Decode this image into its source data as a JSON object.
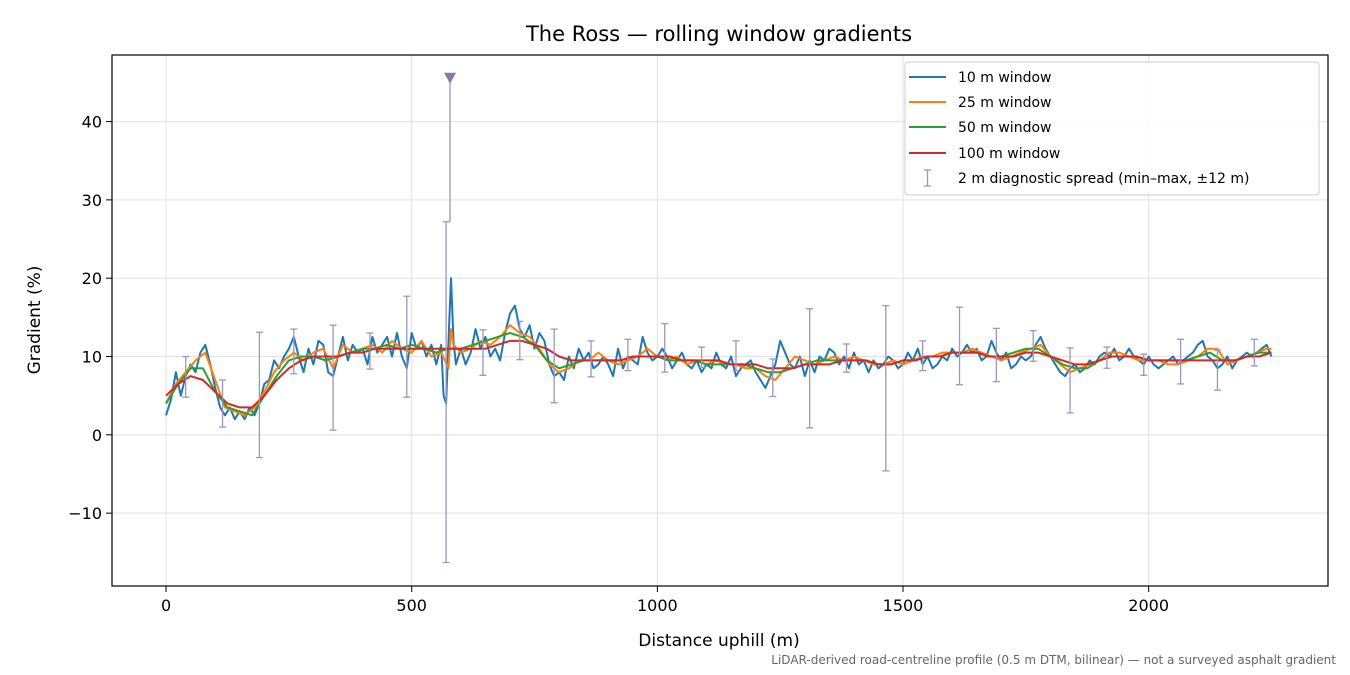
{
  "chart_data": {
    "type": "line",
    "title": "The Ross — rolling window gradients",
    "xlabel": "Distance uphill (m)",
    "ylabel": "Gradient (%)",
    "footnote": "LiDAR-derived road-centreline profile (0.5 m DTM, bilinear) — not a surveyed asphalt gradient",
    "xlim": [
      -110,
      2365
    ],
    "ylim": [
      -19.3,
      48.5
    ],
    "xticks": [
      0,
      500,
      1000,
      1500,
      2000
    ],
    "xtick_labels": [
      "0",
      "500",
      "1000",
      "1500",
      "2000"
    ],
    "yticks": [
      -10,
      0,
      10,
      20,
      30,
      40
    ],
    "ytick_labels": [
      "−10",
      "0",
      "10",
      "20",
      "30",
      "40"
    ],
    "grid": true,
    "legend_position": "top-right",
    "colors": {
      "w10": "#1f77b4",
      "w25": "#ff7f0e",
      "w50": "#2ca02c",
      "w100": "#d62728",
      "diag": "#9e95c0",
      "marker": "#8a78ad"
    },
    "series": [
      {
        "name": "10 m window",
        "color": "#1f77b4",
        "x": [
          0,
          10,
          20,
          30,
          40,
          50,
          60,
          70,
          80,
          90,
          100,
          110,
          120,
          130,
          140,
          150,
          160,
          170,
          180,
          190,
          200,
          210,
          220,
          230,
          240,
          250,
          260,
          270,
          280,
          290,
          300,
          310,
          320,
          330,
          340,
          350,
          360,
          370,
          380,
          390,
          400,
          410,
          420,
          430,
          440,
          450,
          460,
          470,
          480,
          490,
          500,
          510,
          520,
          530,
          540,
          550,
          560,
          565,
          570,
          575,
          580,
          585,
          590,
          600,
          610,
          620,
          630,
          640,
          650,
          660,
          670,
          680,
          690,
          700,
          710,
          720,
          730,
          740,
          750,
          760,
          770,
          780,
          790,
          800,
          810,
          820,
          830,
          840,
          850,
          860,
          870,
          880,
          890,
          900,
          910,
          920,
          930,
          940,
          950,
          960,
          970,
          980,
          990,
          1000,
          1010,
          1020,
          1030,
          1040,
          1050,
          1060,
          1070,
          1080,
          1090,
          1100,
          1110,
          1120,
          1130,
          1140,
          1150,
          1160,
          1170,
          1180,
          1190,
          1200,
          1210,
          1220,
          1230,
          1240,
          1250,
          1260,
          1270,
          1280,
          1290,
          1300,
          1310,
          1320,
          1330,
          1340,
          1350,
          1360,
          1370,
          1380,
          1390,
          1400,
          1410,
          1420,
          1430,
          1440,
          1450,
          1460,
          1470,
          1480,
          1490,
          1500,
          1510,
          1520,
          1530,
          1540,
          1550,
          1560,
          1570,
          1580,
          1590,
          1600,
          1610,
          1620,
          1630,
          1640,
          1650,
          1660,
          1670,
          1680,
          1690,
          1700,
          1710,
          1720,
          1730,
          1740,
          1750,
          1760,
          1770,
          1780,
          1790,
          1800,
          1810,
          1820,
          1830,
          1840,
          1850,
          1860,
          1870,
          1880,
          1890,
          1900,
          1910,
          1920,
          1930,
          1940,
          1950,
          1960,
          1970,
          1980,
          1990,
          2000,
          2010,
          2020,
          2030,
          2040,
          2050,
          2060,
          2070,
          2080,
          2090,
          2100,
          2110,
          2120,
          2130,
          2140,
          2150,
          2160,
          2170,
          2180,
          2190,
          2200,
          2210,
          2220,
          2230,
          2240,
          2250
        ],
        "y": [
          2.5,
          4.5,
          8.0,
          5.0,
          7.5,
          9.0,
          8.0,
          10.5,
          11.5,
          9.0,
          6.0,
          3.5,
          2.5,
          3.5,
          2.0,
          3.0,
          2.0,
          3.5,
          2.5,
          4.0,
          6.5,
          7.0,
          9.5,
          8.5,
          10.0,
          11.0,
          12.5,
          10.0,
          8.0,
          11.0,
          9.0,
          12.0,
          11.5,
          8.0,
          7.5,
          10.0,
          12.5,
          9.5,
          11.5,
          10.5,
          11.0,
          9.0,
          12.5,
          10.5,
          11.5,
          12.5,
          10.0,
          13.0,
          10.0,
          8.5,
          13.0,
          11.0,
          12.0,
          10.0,
          11.5,
          9.0,
          11.5,
          5.0,
          4.0,
          12.0,
          20.0,
          12.0,
          9.0,
          11.0,
          9.0,
          10.5,
          13.5,
          11.0,
          12.5,
          10.0,
          11.0,
          9.5,
          13.0,
          15.5,
          16.5,
          13.5,
          12.5,
          14.0,
          11.0,
          13.0,
          12.0,
          9.0,
          7.5,
          8.0,
          7.0,
          10.0,
          8.5,
          11.0,
          9.5,
          10.5,
          8.5,
          9.0,
          10.0,
          9.0,
          7.5,
          11.0,
          8.5,
          10.0,
          9.5,
          9.0,
          12.5,
          10.5,
          9.5,
          10.0,
          11.0,
          10.0,
          8.5,
          9.5,
          10.5,
          9.0,
          8.5,
          9.5,
          8.0,
          9.0,
          8.5,
          10.5,
          9.0,
          8.5,
          10.0,
          7.5,
          8.5,
          9.0,
          9.5,
          8.0,
          7.0,
          6.0,
          7.5,
          9.0,
          12.0,
          10.5,
          9.0,
          8.5,
          10.0,
          7.5,
          9.5,
          8.0,
          10.0,
          9.5,
          11.0,
          10.5,
          9.0,
          10.0,
          8.5,
          10.5,
          9.0,
          9.5,
          8.0,
          9.5,
          8.5,
          9.0,
          10.0,
          9.5,
          8.5,
          9.0,
          10.5,
          9.5,
          11.0,
          9.0,
          10.0,
          8.5,
          9.0,
          10.0,
          9.5,
          11.0,
          10.0,
          10.5,
          11.5,
          10.5,
          11.0,
          9.5,
          10.0,
          12.0,
          10.5,
          9.5,
          10.5,
          8.5,
          9.0,
          10.0,
          9.5,
          10.0,
          11.5,
          12.5,
          11.0,
          10.0,
          9.0,
          8.0,
          7.5,
          8.5,
          9.0,
          8.0,
          8.5,
          9.5,
          9.0,
          10.0,
          10.5,
          10.0,
          11.0,
          9.5,
          10.0,
          11.0,
          10.0,
          9.5,
          9.0,
          10.0,
          9.0,
          8.5,
          9.0,
          9.5,
          10.0,
          9.0,
          9.5,
          10.0,
          10.5,
          11.5,
          12.0,
          10.0,
          9.5,
          8.5,
          9.0,
          10.0,
          8.5,
          9.5,
          10.0,
          10.5,
          10.0,
          10.5,
          11.0,
          11.5,
          10.0
        ]
      },
      {
        "name": "25 m window",
        "color": "#ff7f0e",
        "x": [
          0,
          20,
          40,
          60,
          80,
          100,
          120,
          140,
          160,
          180,
          200,
          220,
          240,
          260,
          280,
          300,
          320,
          340,
          360,
          380,
          400,
          420,
          440,
          460,
          480,
          500,
          520,
          540,
          560,
          575,
          580,
          585,
          600,
          620,
          640,
          660,
          680,
          700,
          720,
          740,
          760,
          780,
          800,
          820,
          840,
          860,
          880,
          900,
          920,
          940,
          960,
          980,
          1000,
          1020,
          1040,
          1060,
          1080,
          1100,
          1120,
          1140,
          1160,
          1180,
          1200,
          1220,
          1240,
          1260,
          1280,
          1300,
          1320,
          1340,
          1360,
          1380,
          1400,
          1420,
          1440,
          1460,
          1480,
          1500,
          1520,
          1540,
          1560,
          1580,
          1600,
          1620,
          1640,
          1660,
          1680,
          1700,
          1720,
          1740,
          1760,
          1780,
          1800,
          1820,
          1840,
          1860,
          1880,
          1900,
          1920,
          1940,
          1960,
          1980,
          2000,
          2020,
          2040,
          2060,
          2080,
          2100,
          2120,
          2140,
          2160,
          2180,
          2200,
          2220,
          2240,
          2250
        ],
        "y": [
          4.0,
          6.5,
          8.0,
          9.5,
          10.5,
          7.0,
          3.5,
          3.0,
          2.5,
          3.5,
          5.5,
          8.0,
          9.5,
          10.5,
          9.5,
          10.5,
          11.0,
          8.5,
          11.5,
          10.5,
          11.0,
          11.5,
          10.5,
          12.0,
          11.0,
          10.5,
          12.0,
          10.0,
          10.5,
          8.5,
          13.5,
          11.5,
          10.5,
          11.0,
          12.0,
          11.5,
          12.5,
          14.0,
          13.0,
          12.5,
          11.0,
          9.0,
          8.0,
          8.5,
          9.5,
          9.5,
          10.5,
          9.5,
          9.0,
          9.5,
          10.0,
          11.0,
          10.0,
          9.5,
          10.0,
          9.0,
          9.5,
          9.0,
          9.5,
          9.0,
          9.0,
          8.5,
          8.5,
          7.5,
          7.0,
          8.5,
          10.0,
          9.5,
          9.0,
          9.5,
          10.0,
          9.5,
          10.0,
          9.5,
          9.0,
          9.0,
          9.5,
          9.0,
          9.5,
          10.0,
          10.0,
          10.5,
          10.5,
          10.5,
          11.0,
          10.5,
          10.0,
          9.5,
          10.0,
          10.5,
          11.0,
          11.5,
          10.0,
          9.0,
          8.0,
          8.5,
          9.0,
          9.5,
          10.5,
          10.5,
          10.0,
          9.5,
          9.5,
          9.5,
          9.0,
          9.0,
          9.5,
          10.0,
          11.0,
          11.0,
          9.0,
          9.5,
          10.0,
          10.5,
          11.0,
          11.0
        ]
      },
      {
        "name": "50 m window",
        "color": "#2ca02c",
        "x": [
          0,
          25,
          50,
          75,
          100,
          125,
          150,
          175,
          200,
          225,
          250,
          275,
          300,
          325,
          350,
          375,
          400,
          425,
          450,
          475,
          500,
          525,
          550,
          575,
          600,
          625,
          650,
          675,
          700,
          725,
          750,
          775,
          800,
          825,
          850,
          875,
          900,
          925,
          950,
          975,
          1000,
          1025,
          1050,
          1075,
          1100,
          1125,
          1150,
          1175,
          1200,
          1225,
          1250,
          1275,
          1300,
          1325,
          1350,
          1375,
          1400,
          1425,
          1450,
          1475,
          1500,
          1525,
          1550,
          1575,
          1600,
          1625,
          1650,
          1675,
          1700,
          1725,
          1750,
          1775,
          1800,
          1825,
          1850,
          1875,
          1900,
          1925,
          1950,
          1975,
          2000,
          2025,
          2050,
          2075,
          2100,
          2125,
          2150,
          2175,
          2200,
          2225,
          2250
        ],
        "y": [
          4.0,
          6.5,
          8.5,
          8.5,
          5.5,
          3.5,
          3.0,
          2.5,
          5.0,
          7.5,
          9.5,
          10.0,
          10.0,
          9.5,
          10.0,
          10.5,
          11.0,
          11.0,
          11.5,
          11.0,
          11.5,
          11.0,
          10.5,
          11.0,
          11.0,
          11.5,
          12.0,
          12.5,
          13.0,
          12.5,
          11.5,
          9.5,
          8.5,
          9.0,
          9.5,
          9.5,
          9.5,
          9.5,
          10.0,
          10.0,
          10.0,
          9.5,
          9.5,
          9.5,
          9.0,
          9.0,
          9.0,
          9.0,
          8.5,
          8.0,
          8.0,
          8.5,
          9.0,
          9.5,
          9.5,
          9.5,
          9.5,
          9.5,
          9.0,
          9.0,
          9.5,
          9.5,
          10.0,
          10.0,
          10.5,
          10.5,
          10.5,
          10.0,
          10.0,
          10.5,
          11.0,
          11.0,
          10.0,
          9.0,
          8.5,
          8.5,
          9.5,
          10.0,
          10.0,
          10.0,
          9.5,
          9.5,
          9.5,
          9.5,
          10.0,
          10.5,
          9.5,
          9.5,
          10.0,
          10.5,
          10.5
        ]
      },
      {
        "name": "100 m window",
        "color": "#d62728",
        "x": [
          0,
          25,
          50,
          75,
          100,
          125,
          150,
          175,
          200,
          225,
          250,
          275,
          300,
          325,
          350,
          375,
          400,
          425,
          450,
          475,
          500,
          525,
          550,
          575,
          600,
          625,
          650,
          675,
          700,
          725,
          750,
          775,
          800,
          825,
          850,
          875,
          900,
          925,
          950,
          975,
          1000,
          1025,
          1050,
          1075,
          1100,
          1125,
          1150,
          1175,
          1200,
          1225,
          1250,
          1275,
          1300,
          1325,
          1350,
          1375,
          1400,
          1425,
          1450,
          1475,
          1500,
          1525,
          1550,
          1575,
          1600,
          1625,
          1650,
          1675,
          1700,
          1725,
          1750,
          1775,
          1800,
          1825,
          1850,
          1875,
          1900,
          1925,
          1950,
          1975,
          2000,
          2025,
          2050,
          2075,
          2100,
          2125,
          2150,
          2175,
          2200,
          2225,
          2250
        ],
        "y": [
          5.0,
          6.5,
          7.5,
          7.0,
          5.5,
          4.0,
          3.5,
          3.5,
          5.0,
          7.0,
          8.5,
          9.5,
          10.0,
          10.0,
          10.0,
          10.5,
          10.5,
          11.0,
          11.0,
          11.0,
          11.0,
          11.0,
          11.0,
          11.0,
          11.0,
          11.0,
          11.0,
          11.5,
          12.0,
          12.0,
          11.5,
          11.0,
          10.0,
          9.5,
          9.5,
          9.5,
          9.5,
          9.5,
          10.0,
          10.0,
          10.0,
          10.0,
          9.5,
          9.5,
          9.5,
          9.5,
          9.0,
          9.0,
          9.0,
          8.5,
          8.5,
          8.5,
          9.0,
          9.0,
          9.0,
          9.5,
          9.5,
          9.5,
          9.0,
          9.0,
          9.5,
          9.5,
          10.0,
          10.0,
          10.5,
          10.5,
          10.5,
          10.0,
          10.0,
          10.0,
          10.5,
          10.5,
          10.0,
          9.5,
          9.0,
          9.0,
          9.5,
          10.0,
          10.0,
          10.0,
          9.5,
          9.5,
          9.5,
          9.5,
          9.5,
          9.5,
          9.5,
          9.5,
          10.0,
          10.0,
          10.5
        ]
      }
    ],
    "diagnostic": {
      "name": "2 m diagnostic spread (min–max, ±12 m)",
      "color": "#9e95c0",
      "x": [
        40,
        115,
        190,
        260,
        340,
        415,
        490,
        570,
        645,
        720,
        790,
        865,
        940,
        1015,
        1090,
        1160,
        1235,
        1310,
        1385,
        1465,
        1540,
        1615,
        1690,
        1765,
        1840,
        1915,
        1990,
        2065,
        2140,
        2215
      ],
      "low": [
        4.8,
        1.0,
        -2.9,
        7.8,
        0.6,
        8.4,
        4.8,
        -16.3,
        7.6,
        9.6,
        4.1,
        7.4,
        8.2,
        8.0,
        8.6,
        8.2,
        4.9,
        0.9,
        8.0,
        -4.6,
        8.2,
        6.4,
        6.8,
        9.4,
        2.8,
        8.5,
        7.6,
        6.5,
        5.7,
        8.8
      ],
      "high": [
        10.0,
        7.0,
        13.1,
        13.5,
        14.0,
        13.0,
        17.7,
        27.2,
        13.4,
        14.5,
        13.5,
        12.0,
        12.2,
        14.2,
        11.2,
        12.0,
        9.7,
        16.1,
        11.6,
        16.5,
        12.0,
        16.3,
        13.6,
        13.3,
        11.1,
        11.2,
        10.3,
        12.2,
        10.8,
        12.2
      ]
    },
    "outlier_marker": {
      "x": 578,
      "y": 45.6
    }
  }
}
